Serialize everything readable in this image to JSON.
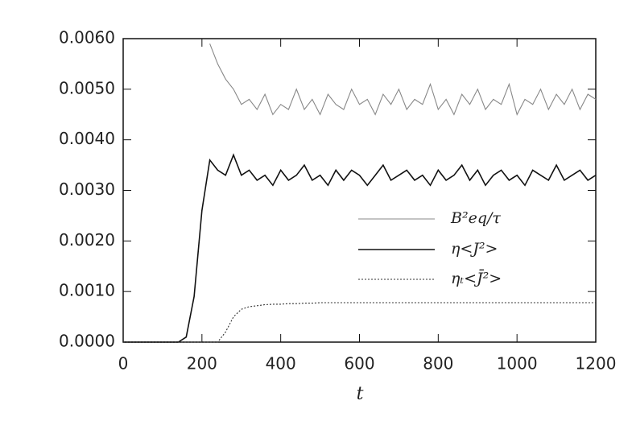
{
  "chart_data": {
    "type": "line",
    "x_label": "t",
    "x": [
      0,
      20,
      40,
      60,
      80,
      100,
      120,
      140,
      160,
      180,
      200,
      220,
      240,
      260,
      280,
      300,
      320,
      340,
      360,
      380,
      400,
      420,
      440,
      460,
      480,
      500,
      520,
      540,
      560,
      580,
      600,
      620,
      640,
      660,
      680,
      700,
      720,
      740,
      760,
      780,
      800,
      820,
      840,
      860,
      880,
      900,
      920,
      940,
      960,
      980,
      1000,
      1020,
      1040,
      1060,
      1080,
      1100,
      1120,
      1140,
      1160,
      1180,
      1200
    ],
    "series": [
      {
        "name": "B²eq/τ",
        "color": "#888888",
        "dash": "none",
        "values": [
          null,
          null,
          null,
          null,
          null,
          null,
          null,
          null,
          null,
          null,
          null,
          0.0059,
          0.0055,
          0.0052,
          0.005,
          0.0047,
          0.0048,
          0.0046,
          0.0049,
          0.0045,
          0.0047,
          0.0046,
          0.005,
          0.0046,
          0.0048,
          0.0045,
          0.0049,
          0.0047,
          0.0046,
          0.005,
          0.0047,
          0.0048,
          0.0045,
          0.0049,
          0.0047,
          0.005,
          0.0046,
          0.0048,
          0.0047,
          0.0051,
          0.0046,
          0.0048,
          0.0045,
          0.0049,
          0.0047,
          0.005,
          0.0046,
          0.0048,
          0.0047,
          0.0051,
          0.0045,
          0.0048,
          0.0047,
          0.005,
          0.0046,
          0.0049,
          0.0047,
          0.005,
          0.0046,
          0.0049,
          0.0048
        ]
      },
      {
        "name": "η<J²>",
        "color": "#111111",
        "dash": "none",
        "values": [
          0,
          0,
          0,
          0,
          0,
          0,
          0,
          0,
          0.0001,
          0.0009,
          0.0026,
          0.0036,
          0.0034,
          0.0033,
          0.0037,
          0.0033,
          0.0034,
          0.0032,
          0.0033,
          0.0031,
          0.0034,
          0.0032,
          0.0033,
          0.0035,
          0.0032,
          0.0033,
          0.0031,
          0.0034,
          0.0032,
          0.0034,
          0.0033,
          0.0031,
          0.0033,
          0.0035,
          0.0032,
          0.0033,
          0.0034,
          0.0032,
          0.0033,
          0.0031,
          0.0034,
          0.0032,
          0.0033,
          0.0035,
          0.0032,
          0.0034,
          0.0031,
          0.0033,
          0.0034,
          0.0032,
          0.0033,
          0.0031,
          0.0034,
          0.0033,
          0.0032,
          0.0035,
          0.0032,
          0.0033,
          0.0034,
          0.0032,
          0.0033
        ]
      },
      {
        "name": "ηₜ<J̄²>",
        "color": "#333333",
        "dash": "2,2",
        "values": [
          0,
          0,
          0,
          0,
          0,
          0,
          0,
          0,
          0,
          0,
          0,
          0,
          0,
          0.0002,
          0.0005,
          0.00065,
          0.0007,
          0.00072,
          0.00074,
          0.00075,
          0.00075,
          0.00076,
          0.00076,
          0.00077,
          0.00077,
          0.00078,
          0.00078,
          0.00078,
          0.00078,
          0.00078,
          0.00078,
          0.00078,
          0.00078,
          0.00078,
          0.00078,
          0.00078,
          0.00078,
          0.00078,
          0.00078,
          0.00078,
          0.00078,
          0.00078,
          0.00078,
          0.00078,
          0.00078,
          0.00078,
          0.00078,
          0.00078,
          0.00078,
          0.00078,
          0.00078,
          0.00078,
          0.00078,
          0.00078,
          0.00078,
          0.00078,
          0.00078,
          0.00078,
          0.00078,
          0.00078,
          0.00078
        ]
      }
    ],
    "xlim": [
      0,
      1200
    ],
    "xticks": [
      0,
      200,
      400,
      600,
      800,
      1000,
      1200
    ],
    "ylim": [
      0,
      0.006
    ],
    "yticks": [
      {
        "value": 0,
        "label": "0.0000"
      },
      {
        "value": 0.001,
        "label": "0.0010"
      },
      {
        "value": 0.002,
        "label": "0.0020"
      },
      {
        "value": 0.003,
        "label": "0.0030"
      },
      {
        "value": 0.004,
        "label": "0.0040"
      },
      {
        "value": 0.005,
        "label": "0.0050"
      },
      {
        "value": 0.006,
        "label": "0.0060"
      }
    ],
    "grid": false
  }
}
